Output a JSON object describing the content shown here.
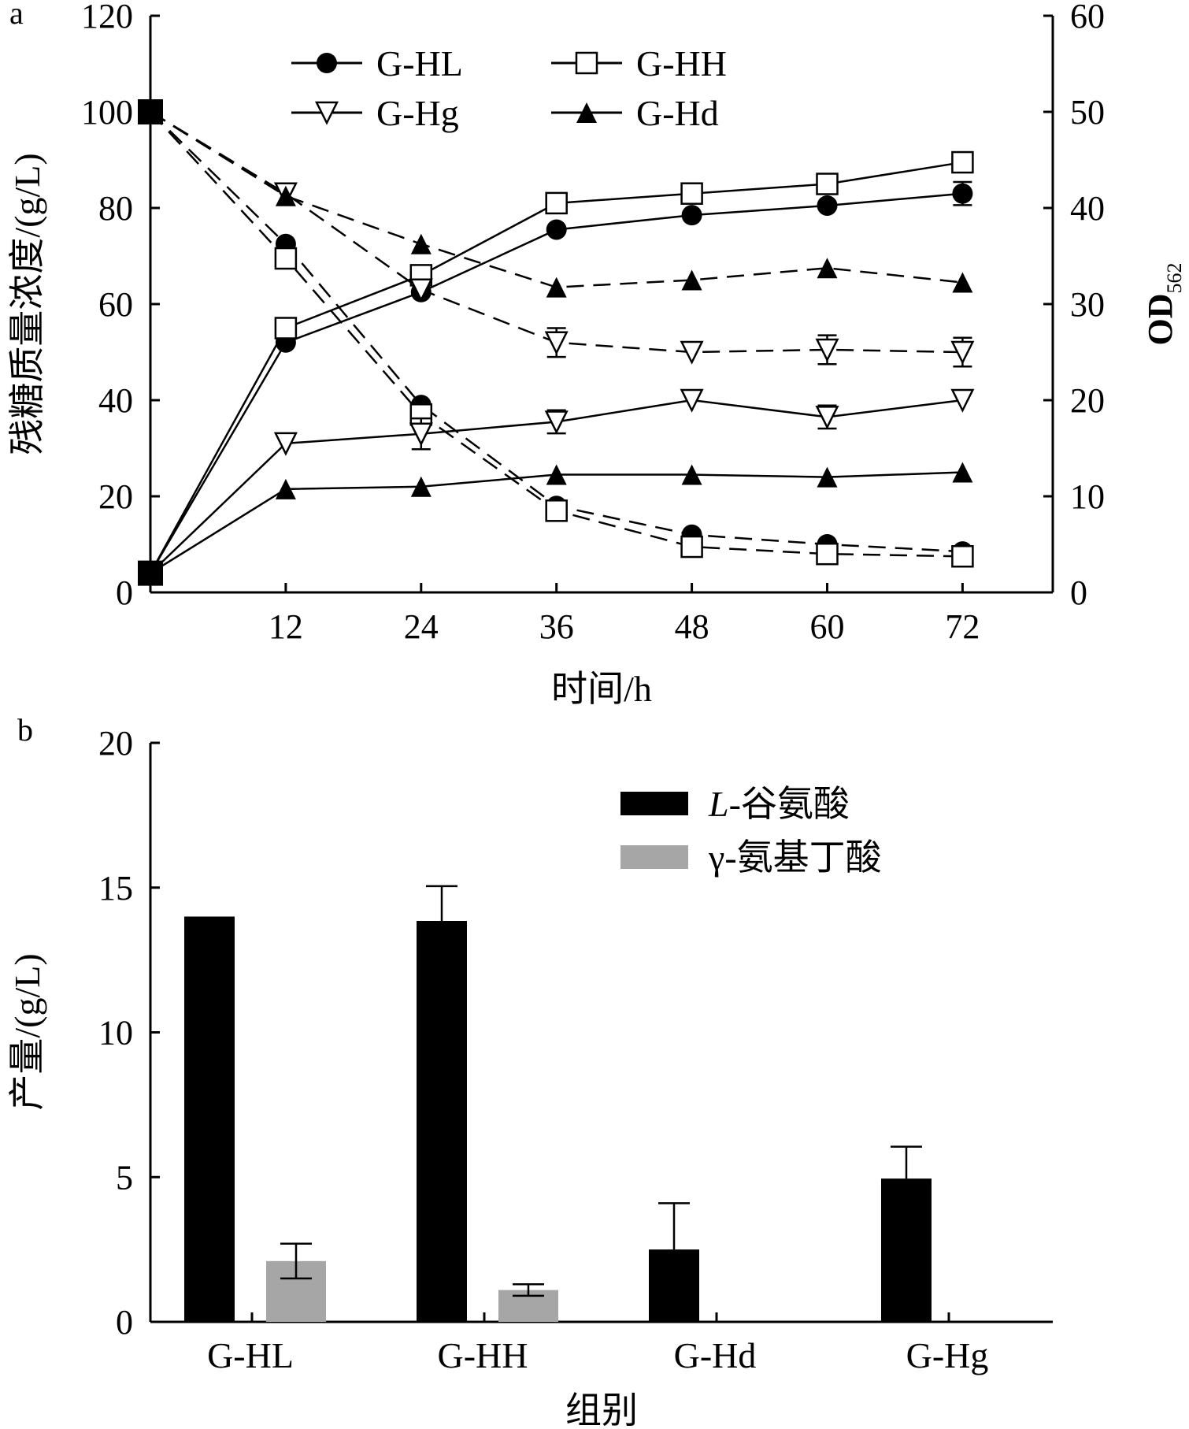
{
  "chart_data": [
    {
      "panel_label": "a",
      "type": "line",
      "xlabel": "时间/h",
      "ylabel_left": "残糖质量浓度/(g/L)",
      "ylabel_right": "OD",
      "ylabel_right_sub": "562",
      "xlim": [
        0,
        80
      ],
      "ylim_left": [
        0,
        120
      ],
      "ylim_right": [
        0,
        60
      ],
      "xticks": [
        12,
        24,
        36,
        48,
        60,
        72
      ],
      "yticks_left": [
        0,
        20,
        40,
        60,
        80,
        100,
        120
      ],
      "yticks_right": [
        0,
        10,
        20,
        30,
        40,
        50,
        60
      ],
      "x": [
        0,
        12,
        24,
        36,
        48,
        60,
        72
      ],
      "legend_position": "top",
      "series": [
        {
          "name": "G-HL",
          "marker": "circle-filled",
          "sugar": [
            100,
            72.5,
            39,
            18,
            12,
            10,
            8.5
          ],
          "od": [
            2,
            26,
            31.25,
            37.75,
            39.25,
            40.25,
            41.5
          ],
          "od_err": [
            0,
            0,
            0,
            0,
            0,
            0,
            1.2
          ]
        },
        {
          "name": "G-HH",
          "marker": "square-open",
          "sugar": [
            100,
            69.5,
            37,
            17,
            9.5,
            8,
            7.5
          ],
          "od": [
            2,
            27.5,
            33,
            40.5,
            41.5,
            42.5,
            44.75
          ],
          "od_err": [
            0,
            0,
            0,
            0,
            0,
            0,
            0.6
          ]
        },
        {
          "name": "G-Hg",
          "marker": "triangle-down-open",
          "sugar": [
            100,
            83,
            63,
            52,
            50,
            50.5,
            50
          ],
          "sugar_err": [
            0,
            0,
            0,
            3,
            0,
            3,
            3
          ],
          "od": [
            2,
            15.5,
            16.5,
            17.75,
            20,
            18.25,
            20
          ],
          "od_err": [
            0,
            0,
            1.6,
            1.2,
            0,
            1.2,
            0
          ]
        },
        {
          "name": "G-Hd",
          "marker": "triangle-up-filled",
          "sugar": [
            100,
            82.5,
            72.5,
            63.5,
            65,
            67.5,
            64.5
          ],
          "od": [
            2,
            10.75,
            11,
            12.25,
            12.25,
            12,
            12.5
          ]
        }
      ],
      "line_styles": {
        "sugar": "dashed",
        "od": "solid"
      }
    },
    {
      "panel_label": "b",
      "type": "bar",
      "xlabel": "组别",
      "ylabel": "产量/(g/L)",
      "ylim": [
        0,
        20
      ],
      "yticks": [
        0,
        5,
        10,
        15,
        20
      ],
      "categories": [
        "G-HL",
        "G-HH",
        "G-Hd",
        "G-Hg"
      ],
      "legend_position": "top-right",
      "series": [
        {
          "name_italic": "L",
          "name_rest": "-谷氨酸",
          "color": "#000000",
          "values": [
            14.0,
            13.85,
            2.5,
            4.95
          ],
          "err": [
            0,
            1.2,
            1.6,
            1.1
          ]
        },
        {
          "name_italic": "",
          "name_rest": "γ-氨基丁酸",
          "color": "#a6a6a6",
          "values": [
            2.1,
            1.1,
            0,
            0
          ],
          "err": [
            0.6,
            0.2,
            0,
            0
          ]
        }
      ]
    }
  ]
}
